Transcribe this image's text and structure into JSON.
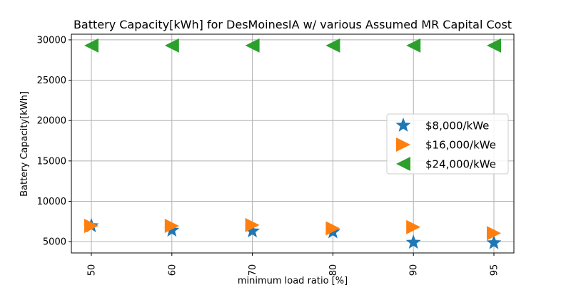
{
  "chart_data": {
    "type": "scatter",
    "title": "Battery Capacity[kWh] for DesMoinesIA w/ various Assumed MR Capital Cost",
    "xlabel": "minimum load ratio [%]",
    "ylabel": "Battery Capacity[kWh]",
    "categories": [
      "50",
      "60",
      "70",
      "80",
      "90",
      "95"
    ],
    "ylim": [
      3600,
      30700
    ],
    "yticks": [
      5000,
      10000,
      15000,
      20000,
      25000,
      30000
    ],
    "grid": true,
    "legend_position": "center-right",
    "series": [
      {
        "name": "$8,000/kWe",
        "marker": "star",
        "color": "#1f77b4",
        "values": [
          6950,
          6400,
          6300,
          6200,
          4900,
          4850
        ]
      },
      {
        "name": "$16,000/kWe",
        "marker": "triangle-right",
        "color": "#ff7f0e",
        "values": [
          6950,
          6950,
          7050,
          6650,
          6800,
          6050
        ]
      },
      {
        "name": "$24,000/kWe",
        "marker": "triangle-left",
        "color": "#2ca02c",
        "values": [
          29300,
          29300,
          29300,
          29300,
          29300,
          29300
        ]
      }
    ]
  }
}
